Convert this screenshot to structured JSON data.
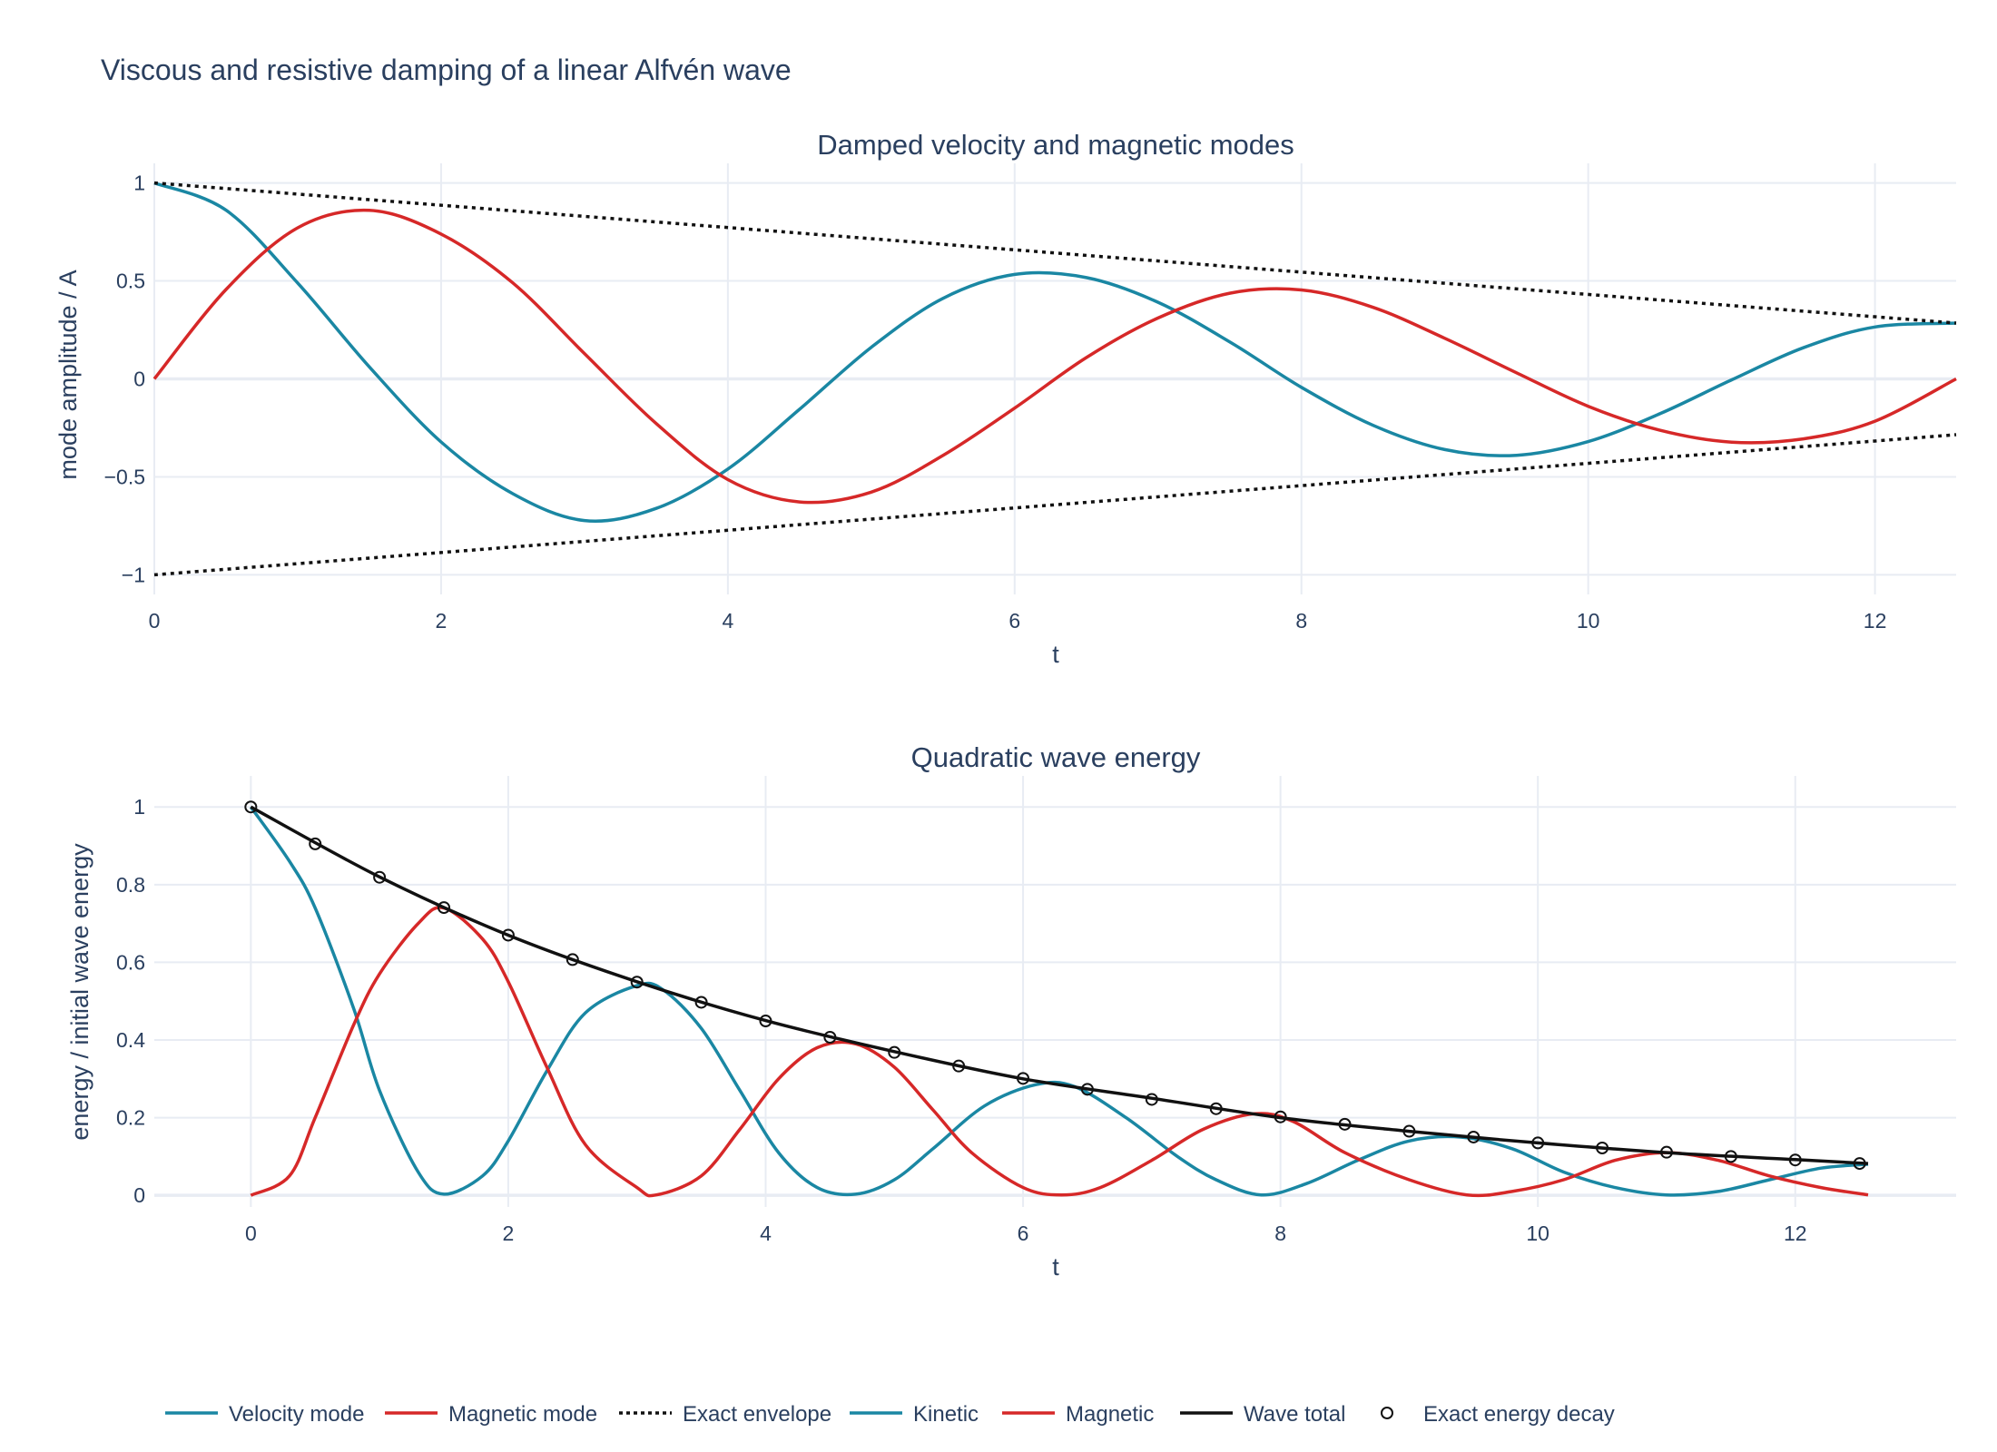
{
  "figure": {
    "title": "Viscous and resistive damping of a linear Alfvén wave"
  },
  "colors": {
    "velocity": "#1a87a3",
    "magnetic": "#d62828",
    "envelope": "#111111",
    "total": "#111111",
    "text": "#2a3f5f",
    "grid": "#e8ecf3"
  },
  "chart_data": [
    {
      "type": "line",
      "title": "Damped velocity and magnetic modes",
      "xlabel": "t",
      "ylabel": "mode amplitude / A",
      "xlim": [
        0,
        12.566
      ],
      "ylim": [
        -1.1,
        1.1
      ],
      "xticks": [
        0,
        2,
        4,
        6,
        8,
        10,
        12
      ],
      "xtick_labels": [
        "0",
        "2",
        "4",
        "6",
        "8",
        "10",
        "12"
      ],
      "yticks": [
        1,
        0.5,
        0,
        -0.5,
        -1
      ],
      "ytick_labels": [
        "1",
        "0.5",
        "0",
        "−0.5",
        "−1"
      ],
      "grid": true,
      "series": [
        {
          "name": "Velocity mode",
          "style": "solid",
          "color": "#1a87a3",
          "x": [
            0,
            0.5,
            1,
            1.5,
            2,
            2.5,
            3,
            3.5,
            4,
            4.5,
            5,
            5.5,
            6,
            6.5,
            7,
            7.5,
            8,
            8.5,
            9,
            9.5,
            10,
            10.5,
            11,
            11.5,
            12,
            12.566
          ],
          "y": [
            1,
            0.861,
            0.489,
            0.061,
            -0.322,
            -0.586,
            -0.723,
            -0.661,
            -0.46,
            -0.155,
            0.161,
            0.411,
            0.533,
            0.517,
            0.391,
            0.189,
            -0.043,
            -0.237,
            -0.361,
            -0.39,
            -0.32,
            -0.178,
            -0.005,
            0.159,
            0.265,
            0.285
          ]
        },
        {
          "name": "Magnetic mode",
          "style": "solid",
          "color": "#d62828",
          "x": [
            0,
            0.5,
            1,
            1.5,
            2,
            2.5,
            3,
            3.5,
            4,
            4.5,
            5,
            5.5,
            6,
            6.5,
            7,
            7.5,
            8,
            8.5,
            9,
            9.5,
            10,
            10.5,
            11,
            11.5,
            12,
            12.566
          ],
          "y": [
            0,
            0.456,
            0.771,
            0.86,
            0.739,
            0.49,
            0.129,
            -0.228,
            -0.514,
            -0.628,
            -0.578,
            -0.391,
            -0.149,
            0.109,
            0.311,
            0.437,
            0.454,
            0.365,
            0.207,
            0.031,
            -0.14,
            -0.262,
            -0.323,
            -0.306,
            -0.216,
            0.0
          ]
        },
        {
          "name": "Exact envelope",
          "style": "dotted",
          "color": "#111111",
          "x": [
            0,
            12.566
          ],
          "y": [
            1,
            0.285
          ]
        },
        {
          "name": "",
          "style": "dotted",
          "color": "#111111",
          "x": [
            0,
            12.566
          ],
          "y": [
            -1,
            -0.285
          ]
        }
      ]
    },
    {
      "type": "line",
      "title": "Quadratic wave energy",
      "xlabel": "t",
      "ylabel": "energy / initial wave energy",
      "xlim": [
        -0.75,
        13.25
      ],
      "ylim": [
        -0.03,
        1.08
      ],
      "xticks": [
        0,
        2,
        4,
        6,
        8,
        10,
        12
      ],
      "xtick_labels": [
        "0",
        "2",
        "4",
        "6",
        "8",
        "10",
        "12"
      ],
      "yticks": [
        1,
        0.8,
        0.6,
        0.4,
        0.2,
        0
      ],
      "ytick_labels": [
        "1",
        "0.8",
        "0.6",
        "0.4",
        "0.2",
        "0"
      ],
      "grid": true,
      "series": [
        {
          "name": "Kinetic",
          "style": "solid",
          "color": "#1a87a3",
          "x": [
            0,
            0.3,
            0.5,
            0.8,
            1,
            1.3,
            1.5,
            1.8,
            2,
            2.3,
            2.6,
            3,
            3.2,
            3.5,
            3.8,
            4.1,
            4.4,
            4.7,
            5,
            5.3,
            5.7,
            6.1,
            6.4,
            6.8,
            7.2,
            7.5,
            7.85,
            8.2,
            8.6,
            9,
            9.4,
            9.8,
            10.2,
            10.6,
            11,
            11.4,
            11.8,
            12.2,
            12.566
          ],
          "y": [
            1,
            0.86,
            0.74,
            0.48,
            0.27,
            0.06,
            0.003,
            0.05,
            0.14,
            0.32,
            0.47,
            0.54,
            0.53,
            0.43,
            0.27,
            0.11,
            0.02,
            0.003,
            0.04,
            0.12,
            0.23,
            0.285,
            0.28,
            0.2,
            0.1,
            0.04,
            0.001,
            0.03,
            0.09,
            0.14,
            0.15,
            0.12,
            0.06,
            0.02,
            0.001,
            0.01,
            0.04,
            0.07,
            0.08
          ]
        },
        {
          "name": "Magnetic",
          "style": "solid",
          "color": "#d62828",
          "x": [
            0,
            0.3,
            0.5,
            0.8,
            1,
            1.3,
            1.5,
            1.8,
            2,
            2.3,
            2.6,
            3,
            3.15,
            3.5,
            3.8,
            4.1,
            4.4,
            4.7,
            5,
            5.3,
            5.6,
            6,
            6.3,
            6.6,
            7,
            7.4,
            7.8,
            8.1,
            8.5,
            9,
            9.45,
            9.8,
            10.2,
            10.6,
            11,
            11.4,
            11.8,
            12.2,
            12.566
          ],
          "y": [
            0,
            0.05,
            0.2,
            0.44,
            0.57,
            0.7,
            0.74,
            0.66,
            0.55,
            0.33,
            0.13,
            0.02,
            0.001,
            0.05,
            0.17,
            0.3,
            0.38,
            0.39,
            0.33,
            0.22,
            0.11,
            0.02,
            0.001,
            0.02,
            0.09,
            0.17,
            0.21,
            0.19,
            0.11,
            0.04,
            0.001,
            0.01,
            0.04,
            0.09,
            0.11,
            0.09,
            0.05,
            0.02,
            0.001
          ]
        },
        {
          "name": "Wave total",
          "style": "solid",
          "color": "#111111",
          "x": [
            0,
            1,
            2,
            3,
            4,
            5,
            6,
            7,
            8,
            9,
            10,
            11,
            12,
            12.566
          ],
          "y": [
            1,
            0.82,
            0.67,
            0.55,
            0.45,
            0.37,
            0.3,
            0.25,
            0.2,
            0.165,
            0.135,
            0.11,
            0.092,
            0.082
          ]
        },
        {
          "name": "Exact energy decay",
          "style": "markers",
          "color": "#111111",
          "x": [
            0,
            0.5,
            1,
            1.5,
            2,
            2.5,
            3,
            3.5,
            4,
            4.5,
            5,
            5.5,
            6,
            6.5,
            7,
            7.5,
            8,
            8.5,
            9,
            9.5,
            10,
            10.5,
            11,
            11.5,
            12,
            12.5
          ],
          "y": [
            1,
            0.905,
            0.819,
            0.741,
            0.67,
            0.607,
            0.549,
            0.497,
            0.449,
            0.407,
            0.368,
            0.333,
            0.301,
            0.273,
            0.247,
            0.223,
            0.202,
            0.183,
            0.165,
            0.15,
            0.135,
            0.122,
            0.111,
            0.1,
            0.091,
            0.082
          ]
        }
      ]
    }
  ],
  "legend": {
    "placement": "bottom",
    "items": [
      {
        "label": "Velocity mode",
        "style": "solid",
        "color": "#1a87a3"
      },
      {
        "label": "Magnetic mode",
        "style": "solid",
        "color": "#d62828"
      },
      {
        "label": "Exact envelope",
        "style": "dotted",
        "color": "#111111"
      },
      {
        "label": "Kinetic",
        "style": "solid",
        "color": "#1a87a3"
      },
      {
        "label": "Magnetic",
        "style": "solid",
        "color": "#d62828"
      },
      {
        "label": "Wave total",
        "style": "solid",
        "color": "#111111"
      },
      {
        "label": "Exact energy decay",
        "style": "markers",
        "color": "#111111"
      }
    ]
  }
}
